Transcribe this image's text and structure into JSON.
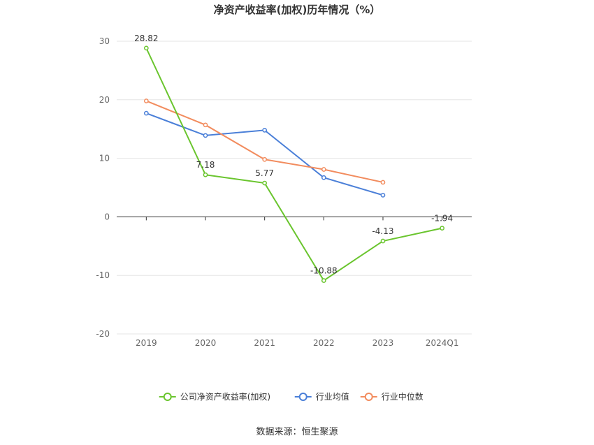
{
  "chart_data": {
    "type": "line",
    "title": "净资产收益率(加权)历年情况（%）",
    "categories": [
      "2019",
      "2020",
      "2021",
      "2022",
      "2023",
      "2024Q1"
    ],
    "ylim": [
      -20,
      30
    ],
    "yticks": [
      30,
      20,
      10,
      0,
      -10,
      -20
    ],
    "grid": true,
    "legend_position": "bottom-center",
    "series": [
      {
        "name": "公司净资产收益率(加权)",
        "color": "#6ac52e",
        "values": [
          28.82,
          7.18,
          5.77,
          -10.88,
          -4.13,
          -1.94
        ],
        "labels": true
      },
      {
        "name": "行业均值",
        "color": "#4a7fd8",
        "values": [
          17.7,
          13.9,
          14.8,
          6.7,
          3.7,
          null
        ],
        "labels": false
      },
      {
        "name": "行业中位数",
        "color": "#f28c5e",
        "values": [
          19.8,
          15.7,
          9.8,
          8.1,
          5.9,
          null
        ],
        "labels": false
      }
    ]
  },
  "source": "数据来源：恒生聚源"
}
